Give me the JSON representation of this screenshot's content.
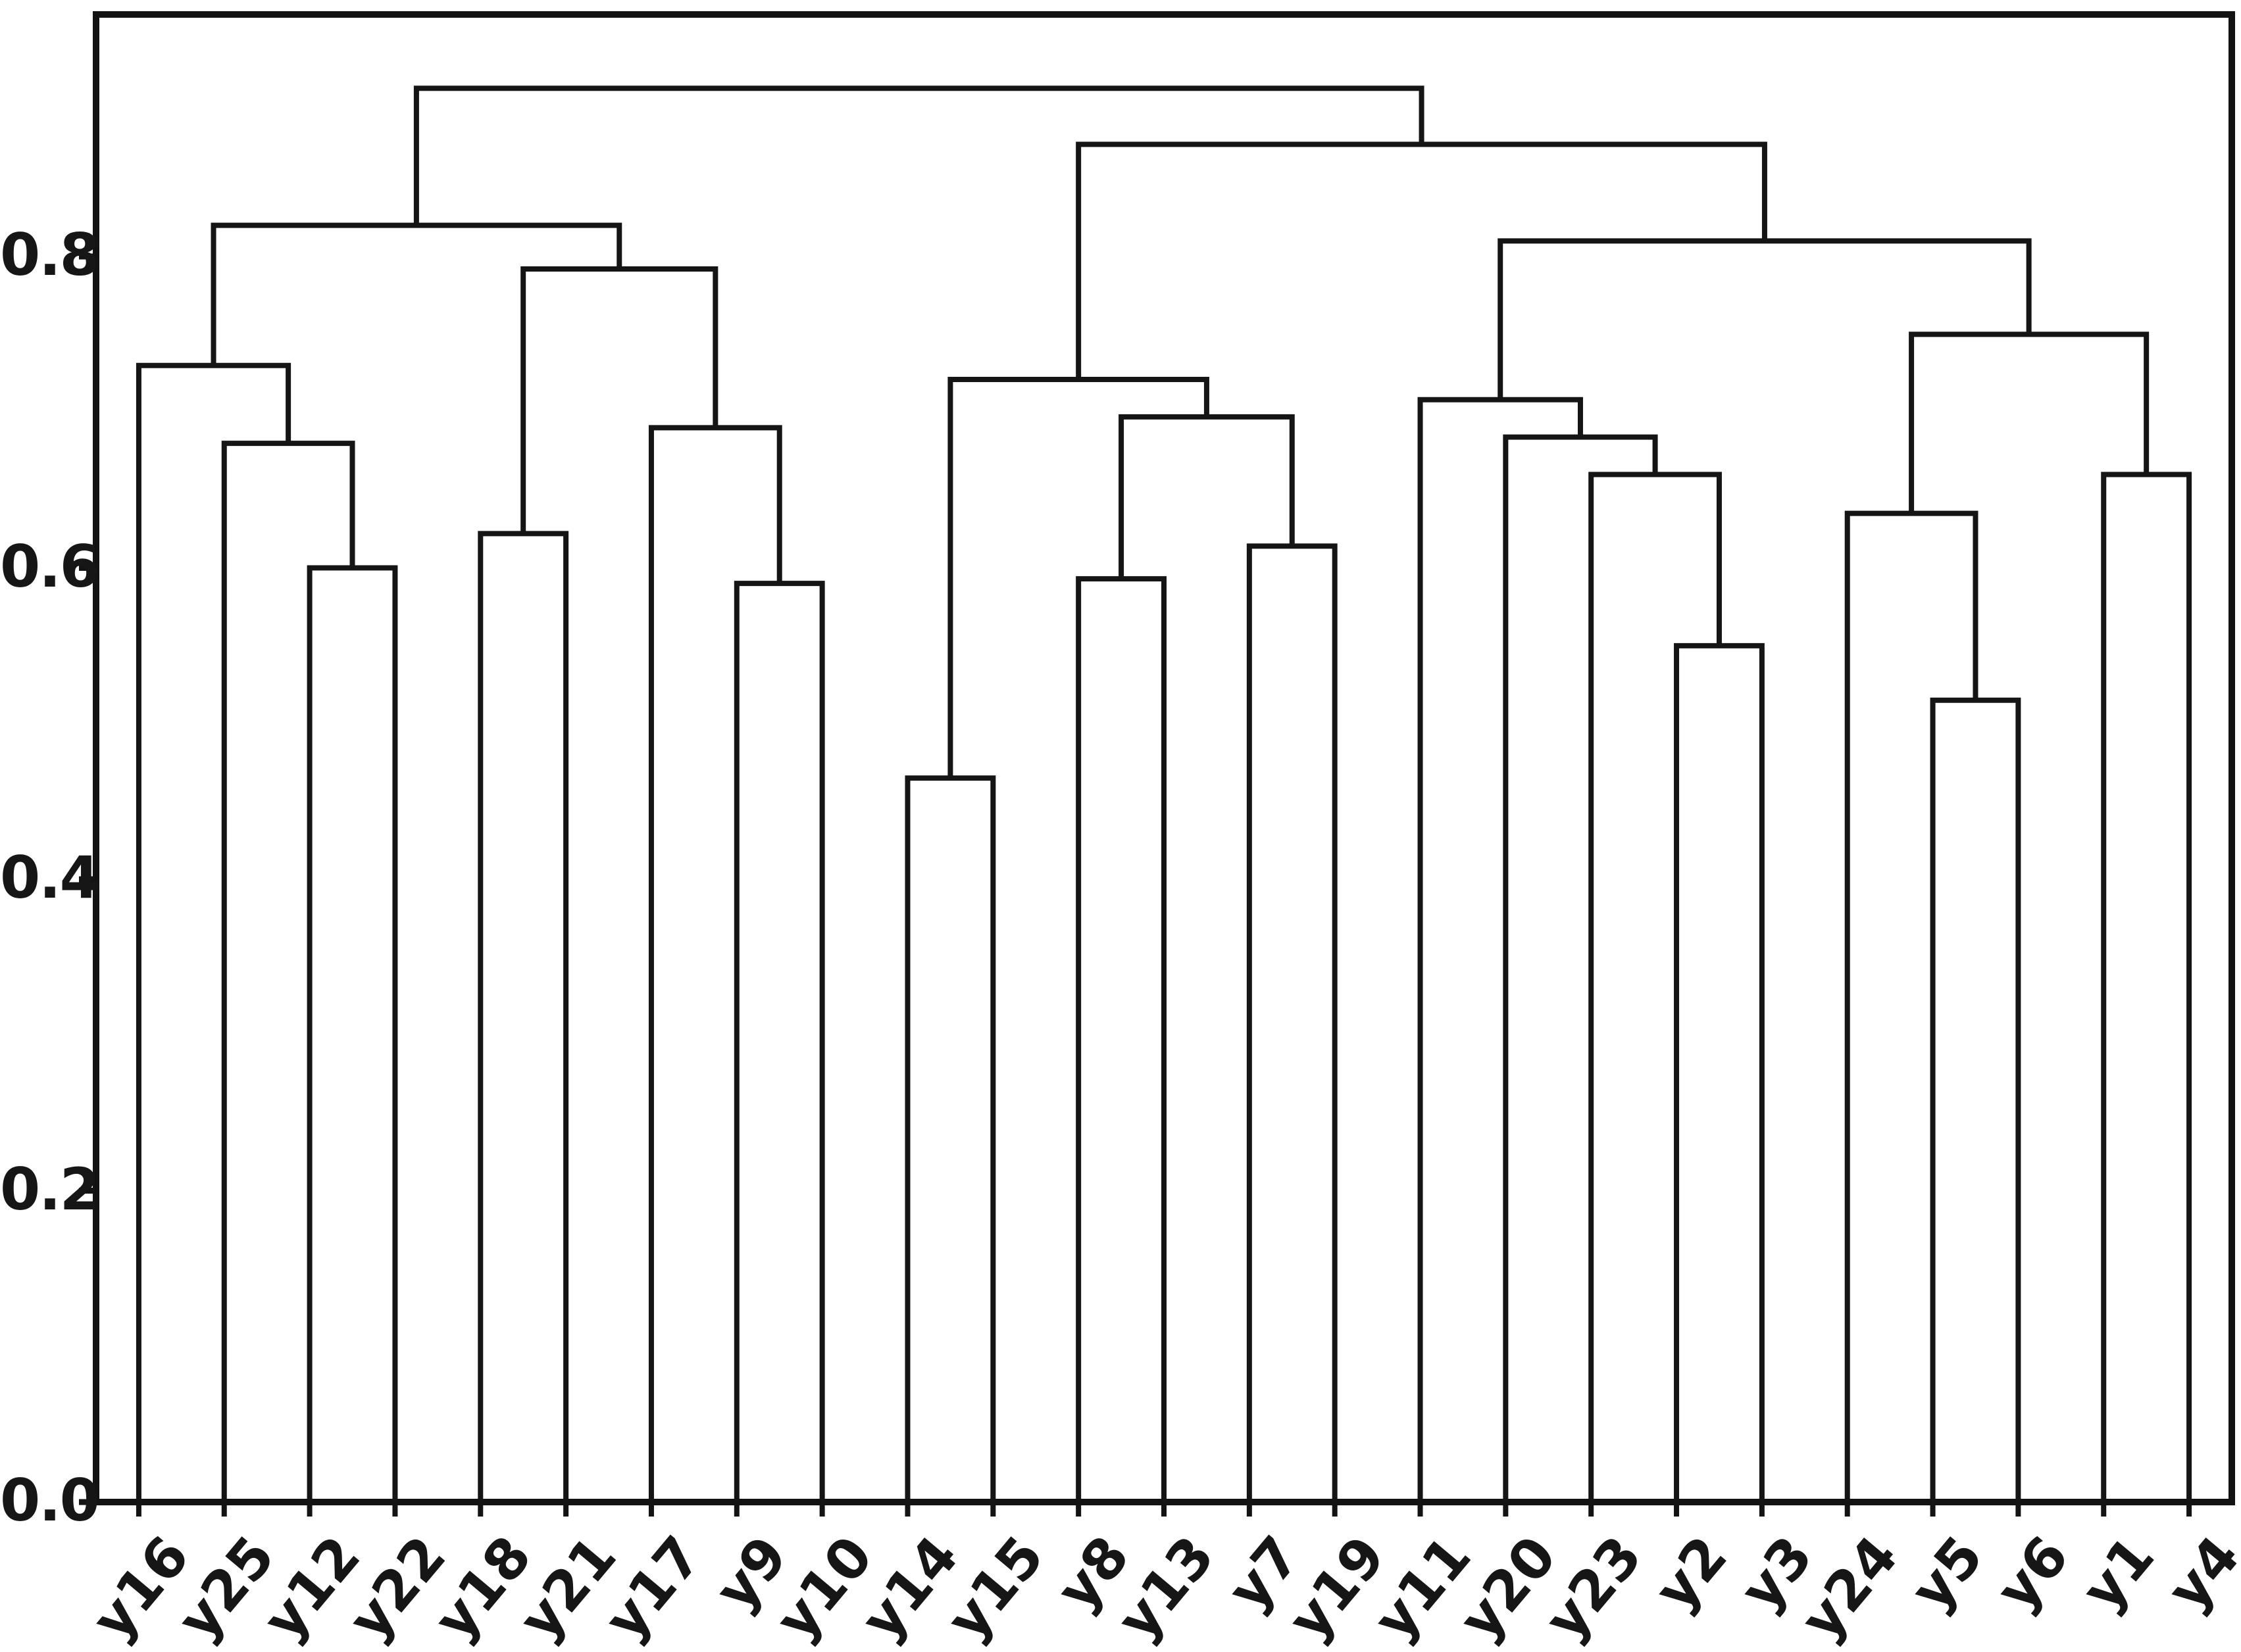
{
  "chart_data": {
    "type": "dendrogram",
    "title": "",
    "xlabel": "",
    "ylabel": "",
    "grid": false,
    "legend": null,
    "background": "#ffffff",
    "line_color": "#151515",
    "axis_color": "#131313",
    "ylim": [
      0.0,
      0.955
    ],
    "ytick_values": [
      0.0,
      0.2,
      0.4,
      0.6,
      0.8
    ],
    "ytick_labels": [
      "0.0",
      "0.2",
      "0.4",
      "0.6",
      "0.8"
    ],
    "leaf_label_rotation_deg": 50,
    "leaves": [
      "y16",
      "y25",
      "y12",
      "y22",
      "y18",
      "y21",
      "y17",
      "y9",
      "y10",
      "y14",
      "y15",
      "y8",
      "y13",
      "y7",
      "y19",
      "y11",
      "y20",
      "y23",
      "y2",
      "y3",
      "y24",
      "y5",
      "y6",
      "y1",
      "y4"
    ],
    "merges": [
      {
        "a": 2,
        "b": 3,
        "height": 0.6
      },
      {
        "a": 1,
        "b": 25,
        "height": 0.68
      },
      {
        "a": 0,
        "b": 26,
        "height": 0.73
      },
      {
        "a": 7,
        "b": 8,
        "height": 0.59
      },
      {
        "a": 6,
        "b": 28,
        "height": 0.69
      },
      {
        "a": 4,
        "b": 5,
        "height": 0.622
      },
      {
        "a": 30,
        "b": 29,
        "height": 0.792
      },
      {
        "a": 27,
        "b": 31,
        "height": 0.82
      },
      {
        "a": 9,
        "b": 10,
        "height": 0.465
      },
      {
        "a": 11,
        "b": 12,
        "height": 0.593
      },
      {
        "a": 13,
        "b": 14,
        "height": 0.614
      },
      {
        "a": 34,
        "b": 35,
        "height": 0.697
      },
      {
        "a": 33,
        "b": 36,
        "height": 0.721
      },
      {
        "a": 18,
        "b": 19,
        "height": 0.55
      },
      {
        "a": 17,
        "b": 38,
        "height": 0.66
      },
      {
        "a": 16,
        "b": 39,
        "height": 0.684
      },
      {
        "a": 15,
        "b": 40,
        "height": 0.708
      },
      {
        "a": 21,
        "b": 22,
        "height": 0.515
      },
      {
        "a": 20,
        "b": 42,
        "height": 0.635
      },
      {
        "a": 23,
        "b": 24,
        "height": 0.66
      },
      {
        "a": 43,
        "b": 44,
        "height": 0.75
      },
      {
        "a": 41,
        "b": 45,
        "height": 0.81
      },
      {
        "a": 37,
        "b": 46,
        "height": 0.872
      },
      {
        "a": 32,
        "b": 47,
        "height": 0.908
      }
    ]
  }
}
